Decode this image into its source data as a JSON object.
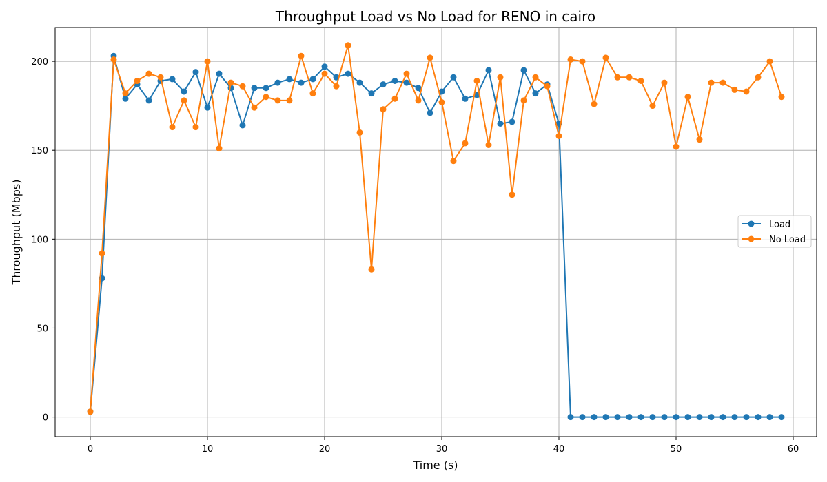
{
  "chart_data": {
    "type": "line",
    "title": "Throughput Load vs No Load for RENO in cairo",
    "xlabel": "Time (s)",
    "ylabel": "Throughput (Mbps)",
    "xlim": [
      -3,
      62
    ],
    "ylim": [
      -11,
      219
    ],
    "xticks": [
      0,
      10,
      20,
      30,
      40,
      50,
      60
    ],
    "yticks": [
      0,
      50,
      100,
      150,
      200
    ],
    "grid": true,
    "legend": "center-right",
    "x": [
      0,
      1,
      2,
      3,
      4,
      5,
      6,
      7,
      8,
      9,
      10,
      11,
      12,
      13,
      14,
      15,
      16,
      17,
      18,
      19,
      20,
      21,
      22,
      23,
      24,
      25,
      26,
      27,
      28,
      29,
      30,
      31,
      32,
      33,
      34,
      35,
      36,
      37,
      38,
      39,
      40,
      41,
      42,
      43,
      44,
      45,
      46,
      47,
      48,
      49,
      50,
      51,
      52,
      53,
      54,
      55,
      56,
      57,
      58,
      59
    ],
    "series": [
      {
        "name": "Load",
        "color": "#1f77b4",
        "x": [
          0,
          1,
          2,
          3,
          4,
          5,
          6,
          7,
          8,
          9,
          10,
          11,
          12,
          13,
          14,
          15,
          16,
          17,
          18,
          19,
          20,
          21,
          22,
          23,
          24,
          25,
          26,
          27,
          28,
          29,
          30,
          31,
          32,
          33,
          34,
          35,
          36,
          37,
          38,
          39,
          40,
          41,
          42,
          43,
          44,
          45,
          46,
          47,
          48,
          49,
          50,
          51,
          52,
          53,
          54,
          55,
          56,
          57,
          58,
          59
        ],
        "values": [
          3,
          78,
          203,
          179,
          187,
          178,
          189,
          190,
          183,
          194,
          174,
          193,
          185,
          164,
          185,
          185,
          188,
          190,
          188,
          190,
          197,
          191,
          193,
          188,
          182,
          187,
          189,
          188,
          185,
          171,
          183,
          191,
          179,
          181,
          195,
          165,
          166,
          195,
          182,
          187,
          165,
          0,
          0,
          0,
          0,
          0,
          0,
          0,
          0,
          0,
          0,
          0,
          0,
          0,
          0,
          0,
          0,
          0,
          0,
          0
        ]
      },
      {
        "name": "No Load",
        "color": "#ff7f0e",
        "x": [
          0,
          1,
          2,
          3,
          4,
          5,
          6,
          7,
          8,
          9,
          10,
          11,
          12,
          13,
          14,
          15,
          16,
          17,
          18,
          19,
          20,
          21,
          22,
          23,
          24,
          25,
          26,
          27,
          28,
          29,
          30,
          31,
          32,
          33,
          34,
          35,
          36,
          37,
          38,
          39,
          40,
          41,
          42,
          43,
          44,
          45,
          46,
          47,
          48,
          49,
          50,
          51,
          52,
          53,
          54,
          55,
          56,
          57,
          58,
          59
        ],
        "values": [
          3,
          92,
          201,
          182,
          189,
          193,
          191,
          163,
          178,
          163,
          200,
          151,
          188,
          186,
          174,
          180,
          178,
          178,
          203,
          182,
          193,
          186,
          209,
          160,
          83,
          173,
          179,
          193,
          178,
          202,
          177,
          144,
          154,
          189,
          153,
          191,
          125,
          178,
          191,
          186,
          158,
          201,
          200,
          176,
          202,
          191,
          191,
          189,
          175,
          188,
          152,
          180,
          156,
          188,
          188,
          184,
          183,
          191,
          200,
          180
        ]
      }
    ]
  }
}
